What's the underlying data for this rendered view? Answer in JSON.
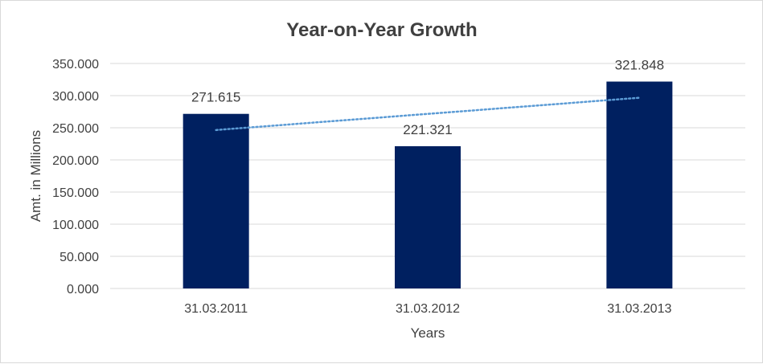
{
  "chart_data": {
    "type": "bar",
    "title": "Year-on-Year Growth",
    "xlabel": "Years",
    "ylabel": "Amt. in Millions",
    "categories": [
      "31.03.2011",
      "31.03.2012",
      "31.03.2013"
    ],
    "values": [
      271.615,
      221.321,
      321.848
    ],
    "value_labels": [
      "271.615",
      "221.321",
      "321.848"
    ],
    "ylim": [
      0,
      350
    ],
    "yticks": [
      0,
      50,
      100,
      150,
      200,
      250,
      300,
      350
    ],
    "ytick_labels": [
      "0.000",
      "50.000",
      "100.000",
      "150.000",
      "200.000",
      "250.000",
      "300.000",
      "350.000"
    ],
    "grid": true,
    "legend": "none",
    "trendline": {
      "type": "linear",
      "style": "dotted",
      "color": "#5b9bd5"
    },
    "bar_color": "#002060",
    "grid_color": "#d9d9d9"
  }
}
